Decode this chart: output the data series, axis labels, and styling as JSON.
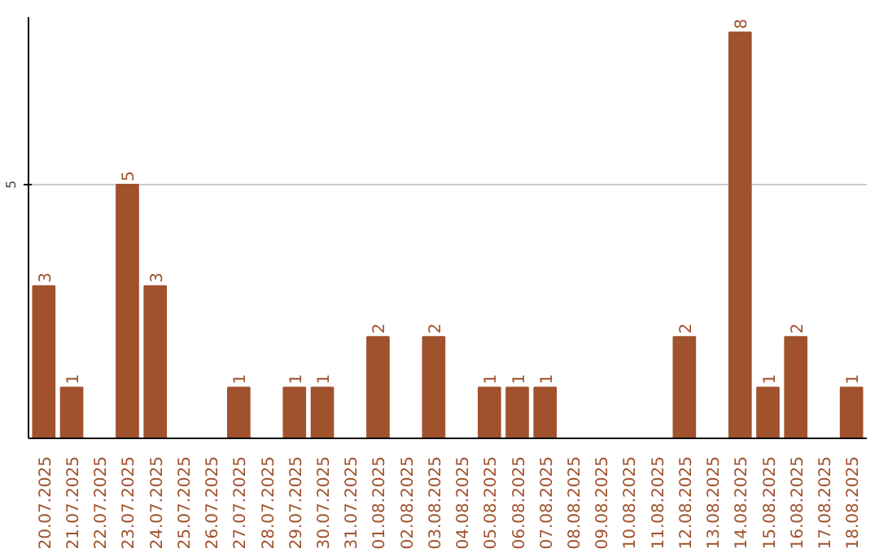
{
  "chart_data": {
    "type": "bar",
    "categories": [
      "20.07.2025",
      "21.07.2025",
      "22.07.2025",
      "23.07.2025",
      "24.07.2025",
      "25.07.2025",
      "26.07.2025",
      "27.07.2025",
      "28.07.2025",
      "29.07.2025",
      "30.07.2025",
      "31.07.2025",
      "01.08.2025",
      "02.08.2025",
      "03.08.2025",
      "04.08.2025",
      "05.08.2025",
      "06.08.2025",
      "07.08.2025",
      "08.08.2025",
      "09.08.2025",
      "10.08.2025",
      "11.08.2025",
      "12.08.2025",
      "13.08.2025",
      "14.08.2025",
      "15.08.2025",
      "16.08.2025",
      "17.08.2025",
      "18.08.2025"
    ],
    "values": [
      3,
      1,
      0,
      5,
      3,
      0,
      0,
      1,
      0,
      1,
      1,
      0,
      2,
      0,
      2,
      0,
      1,
      1,
      1,
      0,
      0,
      0,
      0,
      2,
      0,
      8,
      1,
      2,
      0,
      1
    ],
    "value_labels": [
      "3",
      "1",
      null,
      "5",
      "3",
      null,
      null,
      "1",
      null,
      "1",
      "1",
      null,
      "2",
      null,
      "2",
      null,
      "1",
      "1",
      "1",
      null,
      null,
      null,
      null,
      "2",
      null,
      "8",
      "1",
      "2",
      null,
      "1"
    ],
    "color": "#a0522d",
    "ylim": [
      0,
      8.3
    ],
    "yticks": [
      5
    ],
    "grid": "y"
  }
}
